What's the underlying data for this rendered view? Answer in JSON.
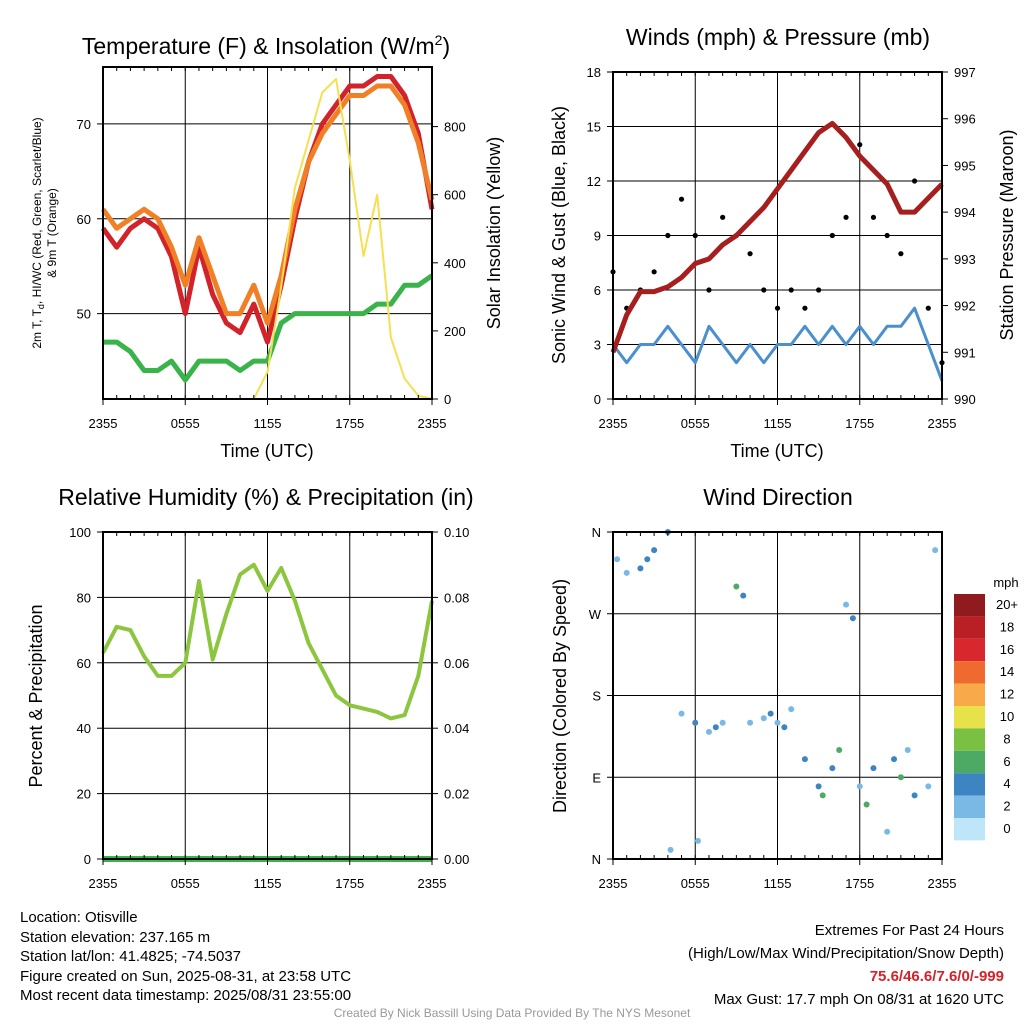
{
  "charts": {
    "temp": {
      "title": "Temperature (F) & Insolation (W/m",
      "title_sup": "2",
      "title_close": ")",
      "xlabel": "Time (UTC)",
      "ylabel_left_line1": "2m T, T",
      "ylabel_left_sub": "d",
      "ylabel_left_rest": ", HI/WC (Red, Green, Scarlet/Blue)",
      "ylabel_left_line2": "& 9m T (Orange)",
      "ylabel_right": "Solar Insolation (Yellow)",
      "xticks": [
        "2355",
        "0555",
        "1155",
        "1755",
        "2355"
      ],
      "yticks_left": [
        "50",
        "60",
        "70"
      ],
      "yticks_right": [
        "0",
        "200",
        "400",
        "600",
        "800"
      ]
    },
    "winds": {
      "title": "Winds (mph) & Pressure (mb)",
      "xlabel": "Time (UTC)",
      "ylabel_left": "Sonic Wind & Gust (Blue, Black)",
      "ylabel_right": "Station Pressure (Maroon)",
      "xticks": [
        "2355",
        "0555",
        "1155",
        "1755",
        "2355"
      ],
      "yticks_left": [
        "0",
        "3",
        "6",
        "9",
        "12",
        "15",
        "18"
      ],
      "yticks_right": [
        "990",
        "991",
        "992",
        "993",
        "994",
        "995",
        "996",
        "997"
      ]
    },
    "rh": {
      "title": "Relative Humidity (%) & Precipitation (in)",
      "ylabel_left": "Percent & Precipitation",
      "xticks": [
        "2355",
        "0555",
        "1155",
        "1755",
        "2355"
      ],
      "yticks_left": [
        "0",
        "20",
        "40",
        "60",
        "80",
        "100"
      ],
      "yticks_right": [
        "0.00",
        "0.02",
        "0.04",
        "0.06",
        "0.08",
        "0.10"
      ]
    },
    "wdir": {
      "title": "Wind Direction",
      "ylabel_left": "Direction (Colored By Speed)",
      "xticks": [
        "2355",
        "0555",
        "1155",
        "1755",
        "2355"
      ],
      "yticks_left": [
        "N",
        "E",
        "S",
        "W",
        "N"
      ],
      "colorbar_title": "mph",
      "colorbar_labels": [
        "20+",
        "18",
        "16",
        "14",
        "12",
        "10",
        "8",
        "6",
        "4",
        "2",
        "0"
      ]
    }
  },
  "chart_data": [
    {
      "type": "line",
      "title": "Temperature (F) & Insolation (W/m2)",
      "xlabel": "Time (UTC)",
      "x_hours": [
        0,
        1,
        2,
        3,
        4,
        5,
        6,
        7,
        8,
        9,
        10,
        11,
        12,
        13,
        14,
        15,
        16,
        17,
        18,
        19,
        20,
        21,
        22,
        23,
        24
      ],
      "ylim_left": [
        41,
        76
      ],
      "ylim_right": [
        0,
        975
      ],
      "series": [
        {
          "name": "2m T",
          "axis": "left",
          "color": "#d2232a",
          "values": [
            59,
            57,
            59,
            60,
            59,
            56,
            50,
            57,
            52,
            49,
            48,
            51,
            47,
            53,
            60,
            66,
            70,
            72,
            74,
            74,
            75,
            75,
            73,
            69,
            61
          ]
        },
        {
          "name": "9m T",
          "axis": "left",
          "color": "#f07f26",
          "values": [
            61,
            59,
            60,
            61,
            60,
            57,
            53,
            58,
            54,
            50,
            50,
            53,
            49,
            54,
            61,
            66,
            69,
            71,
            73,
            73,
            74,
            74,
            72,
            68,
            62
          ]
        },
        {
          "name": "Td",
          "axis": "left",
          "color": "#39b34a",
          "values": [
            47,
            47,
            46,
            44,
            44,
            45,
            43,
            45,
            45,
            45,
            44,
            45,
            45,
            49,
            50,
            50,
            50,
            50,
            50,
            50,
            51,
            51,
            53,
            53,
            54
          ]
        },
        {
          "name": "Solar Insolation",
          "axis": "right",
          "color": "#f5e052",
          "values": [
            0,
            0,
            0,
            0,
            0,
            0,
            0,
            0,
            0,
            0,
            0,
            0,
            80,
            330,
            620,
            760,
            900,
            940,
            700,
            420,
            600,
            180,
            60,
            10,
            0
          ]
        }
      ]
    },
    {
      "type": "line",
      "title": "Winds (mph) & Pressure (mb)",
      "xlabel": "Time (UTC)",
      "x_hours": [
        0,
        1,
        2,
        3,
        4,
        5,
        6,
        7,
        8,
        9,
        10,
        11,
        12,
        13,
        14,
        15,
        16,
        17,
        18,
        19,
        20,
        21,
        22,
        23,
        24
      ],
      "ylim_left": [
        0,
        18
      ],
      "ylim_right": [
        990,
        997
      ],
      "series": [
        {
          "name": "Sonic Wind",
          "axis": "left",
          "color": "#4a90cf",
          "values": [
            3,
            2,
            3,
            3,
            4,
            3,
            2,
            4,
            3,
            2,
            3,
            2,
            3,
            3,
            4,
            3,
            4,
            3,
            4,
            3,
            4,
            4,
            5,
            3,
            1
          ]
        },
        {
          "name": "Gust",
          "axis": "left",
          "color": "#000000",
          "values": [
            7,
            5,
            6,
            7,
            9,
            11,
            9,
            6,
            10,
            9,
            8,
            6,
            5,
            6,
            5,
            6,
            9,
            10,
            14,
            10,
            9,
            8,
            12,
            5,
            2
          ]
        },
        {
          "name": "Station Pressure",
          "axis": "right",
          "color": "#a61e1e",
          "values": [
            991,
            991.8,
            992.3,
            992.3,
            992.4,
            992.6,
            992.9,
            993,
            993.3,
            993.5,
            993.8,
            994.1,
            994.5,
            994.9,
            995.3,
            995.7,
            995.9,
            995.6,
            995.2,
            994.9,
            994.6,
            994.0,
            994.0,
            994.3,
            994.6
          ]
        }
      ]
    },
    {
      "type": "line",
      "title": "Relative Humidity (%) & Precipitation (in)",
      "x_hours": [
        0,
        1,
        2,
        3,
        4,
        5,
        6,
        7,
        8,
        9,
        10,
        11,
        12,
        13,
        14,
        15,
        16,
        17,
        18,
        19,
        20,
        21,
        22,
        23,
        24
      ],
      "ylim_left": [
        0,
        100
      ],
      "ylim_right": [
        0,
        0.1
      ],
      "series": [
        {
          "name": "Relative Humidity",
          "axis": "left",
          "color": "#8cc63f",
          "values": [
            63,
            71,
            70,
            62,
            56,
            56,
            60,
            85,
            61,
            75,
            87,
            90,
            82,
            89,
            79,
            66,
            58,
            50,
            47,
            46,
            45,
            43,
            44,
            56,
            79
          ]
        },
        {
          "name": "Precipitation",
          "axis": "right",
          "color": "#39b34a",
          "values": [
            0,
            0,
            0,
            0,
            0,
            0,
            0,
            0,
            0,
            0,
            0,
            0,
            0,
            0,
            0,
            0,
            0,
            0,
            0,
            0,
            0,
            0,
            0,
            0,
            0
          ]
        }
      ]
    },
    {
      "type": "scatter",
      "title": "Wind Direction",
      "ylabel": "Direction (Colored By Speed)",
      "x_hours": [
        0.3,
        1,
        2,
        2.5,
        3,
        4,
        4.2,
        5,
        6,
        6.2,
        7,
        7.5,
        8,
        9,
        9.5,
        10,
        11,
        11.5,
        12,
        12.5,
        13,
        14,
        15,
        15.3,
        16,
        16.5,
        17,
        17.5,
        18,
        18.5,
        19,
        20,
        20.5,
        21,
        21.5,
        22,
        23,
        23.5
      ],
      "directions_deg": [
        330,
        315,
        320,
        330,
        340,
        360,
        10,
        160,
        150,
        20,
        140,
        145,
        150,
        300,
        290,
        150,
        155,
        160,
        150,
        145,
        165,
        110,
        80,
        70,
        100,
        120,
        280,
        265,
        80,
        60,
        100,
        30,
        110,
        90,
        120,
        70,
        80,
        340
      ],
      "speeds_mph": [
        3,
        2,
        4,
        4,
        5,
        4,
        3,
        3,
        4,
        2,
        3,
        4,
        3,
        6,
        4,
        3,
        2,
        4,
        3,
        4,
        3,
        4,
        5,
        6,
        4,
        7,
        3,
        4,
        3,
        6,
        4,
        2,
        4,
        7,
        3,
        4,
        2,
        2
      ]
    }
  ],
  "footer": {
    "location": "Location: Otisville",
    "elevation": "Station elevation: 237.165 m",
    "latlon": "Station lat/lon: 41.4825; -74.5037",
    "created": "Figure created on Sun, 2025-08-31, at 23:58 UTC",
    "recent": "Most recent data timestamp: 2025/08/31 23:55:00",
    "extremes_title": "Extremes For Past 24 Hours",
    "extremes_legend": "(High/Low/Max Wind/Precipitation/Snow Depth)",
    "extremes_values": "75.6/46.6/7.6/0/-999",
    "max_gust": "Max Gust: 17.7 mph On 08/31 at 1620 UTC",
    "credit": "Created By Nick Bassill Using Data Provided By The NYS Mesonet"
  }
}
